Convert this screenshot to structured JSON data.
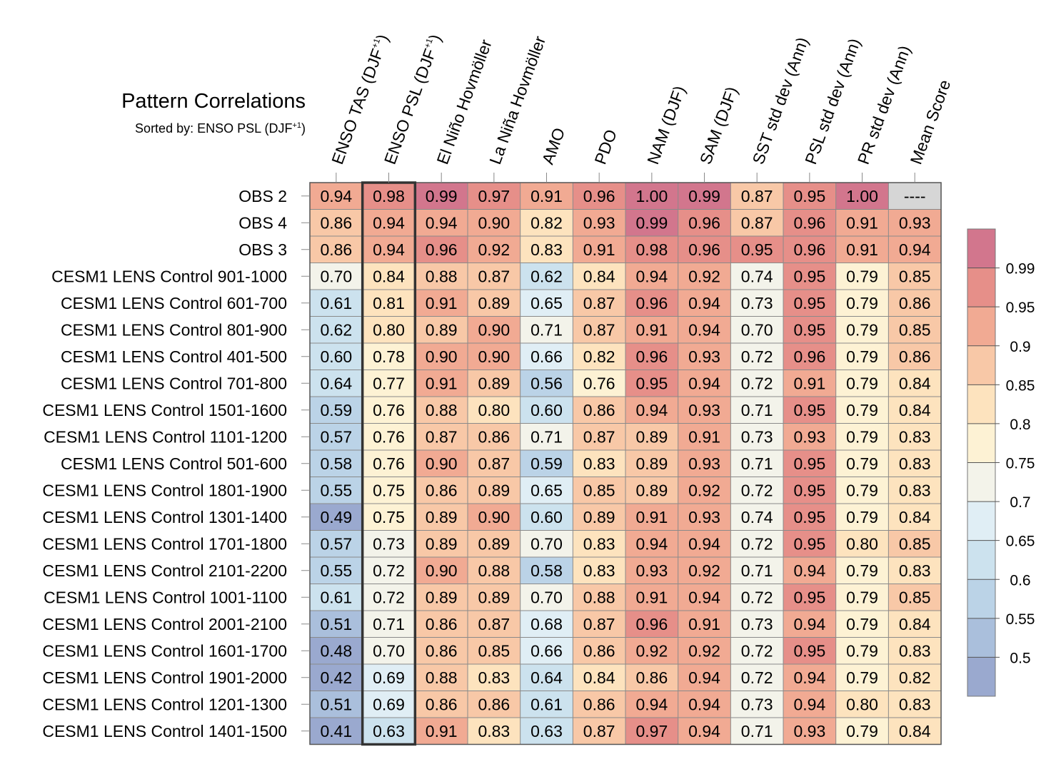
{
  "chart_data": {
    "type": "heatmap",
    "title": "Pattern Correlations",
    "subtitle": "Sorted by: ENSO PSL (DJF+1)",
    "subtitle_parts": {
      "text": "Sorted by: ENSO PSL (DJF",
      "sup": "+1",
      "close": ")"
    },
    "columns": [
      {
        "label": "ENSO TAS (DJF",
        "sup": "+1",
        "close": ")"
      },
      {
        "label": "ENSO PSL (DJF",
        "sup": "+1",
        "close": ")"
      },
      {
        "label": "El Niño Hovmöller"
      },
      {
        "label": "La Niña Hovmöller"
      },
      {
        "label": "AMO"
      },
      {
        "label": "PDO"
      },
      {
        "label": "NAM (DJF)"
      },
      {
        "label": "SAM (DJF)"
      },
      {
        "label": "SST std dev (Ann)"
      },
      {
        "label": "PSL std dev (Ann)"
      },
      {
        "label": "PR std dev (Ann)"
      },
      {
        "label": "Mean Score"
      }
    ],
    "highlighted_column": 1,
    "missing_text": "----",
    "rows": [
      {
        "label": "OBS 2",
        "values": [
          "0.94",
          "0.98",
          "0.99",
          "0.97",
          "0.91",
          "0.96",
          "1.00",
          "0.99",
          "0.87",
          "0.95",
          "1.00",
          "----"
        ]
      },
      {
        "label": "OBS 4",
        "values": [
          "0.86",
          "0.94",
          "0.94",
          "0.90",
          "0.82",
          "0.93",
          "0.99",
          "0.96",
          "0.87",
          "0.96",
          "0.91",
          "0.93"
        ]
      },
      {
        "label": "OBS 3",
        "values": [
          "0.86",
          "0.94",
          "0.96",
          "0.92",
          "0.83",
          "0.91",
          "0.98",
          "0.96",
          "0.95",
          "0.96",
          "0.91",
          "0.94"
        ]
      },
      {
        "label": "CESM1 LENS Control 901-1000",
        "values": [
          "0.70",
          "0.84",
          "0.88",
          "0.87",
          "0.62",
          "0.84",
          "0.94",
          "0.92",
          "0.74",
          "0.95",
          "0.79",
          "0.85"
        ]
      },
      {
        "label": "CESM1 LENS Control 601-700",
        "values": [
          "0.61",
          "0.81",
          "0.91",
          "0.89",
          "0.65",
          "0.87",
          "0.96",
          "0.94",
          "0.73",
          "0.95",
          "0.79",
          "0.86"
        ]
      },
      {
        "label": "CESM1 LENS Control 801-900",
        "values": [
          "0.62",
          "0.80",
          "0.89",
          "0.90",
          "0.71",
          "0.87",
          "0.91",
          "0.94",
          "0.70",
          "0.95",
          "0.79",
          "0.85"
        ]
      },
      {
        "label": "CESM1 LENS Control 401-500",
        "values": [
          "0.60",
          "0.78",
          "0.90",
          "0.90",
          "0.66",
          "0.82",
          "0.96",
          "0.93",
          "0.72",
          "0.96",
          "0.79",
          "0.86"
        ]
      },
      {
        "label": "CESM1 LENS Control 701-800",
        "values": [
          "0.64",
          "0.77",
          "0.91",
          "0.89",
          "0.56",
          "0.76",
          "0.95",
          "0.94",
          "0.72",
          "0.91",
          "0.79",
          "0.84"
        ]
      },
      {
        "label": "CESM1 LENS Control 1501-1600",
        "values": [
          "0.59",
          "0.76",
          "0.88",
          "0.80",
          "0.60",
          "0.86",
          "0.94",
          "0.93",
          "0.71",
          "0.95",
          "0.79",
          "0.84"
        ]
      },
      {
        "label": "CESM1 LENS Control 1101-1200",
        "values": [
          "0.57",
          "0.76",
          "0.87",
          "0.86",
          "0.71",
          "0.87",
          "0.89",
          "0.91",
          "0.73",
          "0.93",
          "0.79",
          "0.83"
        ]
      },
      {
        "label": "CESM1 LENS Control 501-600",
        "values": [
          "0.58",
          "0.76",
          "0.90",
          "0.87",
          "0.59",
          "0.83",
          "0.89",
          "0.93",
          "0.71",
          "0.95",
          "0.79",
          "0.83"
        ]
      },
      {
        "label": "CESM1 LENS Control 1801-1900",
        "values": [
          "0.55",
          "0.75",
          "0.86",
          "0.89",
          "0.65",
          "0.85",
          "0.89",
          "0.92",
          "0.72",
          "0.95",
          "0.79",
          "0.83"
        ]
      },
      {
        "label": "CESM1 LENS Control 1301-1400",
        "values": [
          "0.49",
          "0.75",
          "0.89",
          "0.90",
          "0.60",
          "0.89",
          "0.91",
          "0.93",
          "0.74",
          "0.95",
          "0.79",
          "0.84"
        ]
      },
      {
        "label": "CESM1 LENS Control 1701-1800",
        "values": [
          "0.57",
          "0.73",
          "0.89",
          "0.89",
          "0.70",
          "0.83",
          "0.94",
          "0.94",
          "0.72",
          "0.95",
          "0.80",
          "0.85"
        ]
      },
      {
        "label": "CESM1 LENS Control 2101-2200",
        "values": [
          "0.55",
          "0.72",
          "0.90",
          "0.88",
          "0.58",
          "0.83",
          "0.93",
          "0.92",
          "0.71",
          "0.94",
          "0.79",
          "0.83"
        ]
      },
      {
        "label": "CESM1 LENS Control 1001-1100",
        "values": [
          "0.61",
          "0.72",
          "0.89",
          "0.89",
          "0.70",
          "0.88",
          "0.91",
          "0.94",
          "0.72",
          "0.95",
          "0.79",
          "0.85"
        ]
      },
      {
        "label": "CESM1 LENS Control 2001-2100",
        "values": [
          "0.51",
          "0.71",
          "0.86",
          "0.87",
          "0.68",
          "0.87",
          "0.96",
          "0.91",
          "0.73",
          "0.94",
          "0.79",
          "0.84"
        ]
      },
      {
        "label": "CESM1 LENS Control 1601-1700",
        "values": [
          "0.48",
          "0.70",
          "0.86",
          "0.85",
          "0.66",
          "0.86",
          "0.92",
          "0.92",
          "0.72",
          "0.95",
          "0.79",
          "0.83"
        ]
      },
      {
        "label": "CESM1 LENS Control 1901-2000",
        "values": [
          "0.42",
          "0.69",
          "0.88",
          "0.83",
          "0.64",
          "0.84",
          "0.86",
          "0.94",
          "0.72",
          "0.94",
          "0.79",
          "0.82"
        ]
      },
      {
        "label": "CESM1 LENS Control 1201-1300",
        "values": [
          "0.51",
          "0.69",
          "0.86",
          "0.86",
          "0.61",
          "0.86",
          "0.94",
          "0.94",
          "0.73",
          "0.94",
          "0.80",
          "0.83"
        ]
      },
      {
        "label": "CESM1 LENS Control 1401-1500",
        "values": [
          "0.41",
          "0.63",
          "0.91",
          "0.83",
          "0.63",
          "0.87",
          "0.97",
          "0.94",
          "0.71",
          "0.93",
          "0.79",
          "0.84"
        ]
      }
    ],
    "colorbar": {
      "labels": [
        "0.99",
        "0.95",
        "0.9",
        "0.85",
        "0.8",
        "0.75",
        "0.7",
        "0.65",
        "0.6",
        "0.55",
        "0.5"
      ],
      "thresholds": [
        0.5,
        0.55,
        0.6,
        0.65,
        0.7,
        0.75,
        0.8,
        0.85,
        0.9,
        0.95,
        0.99
      ],
      "colors": [
        "#9aa9cf",
        "#aabfdc",
        "#bbd3e7",
        "#cce2ee",
        "#e0eef5",
        "#f3f3ea",
        "#fdf2d4",
        "#fde3be",
        "#f8c8a7",
        "#f1aa93",
        "#e68f89",
        "#d2768d"
      ],
      "missing_color": "#d6d6d6"
    }
  }
}
